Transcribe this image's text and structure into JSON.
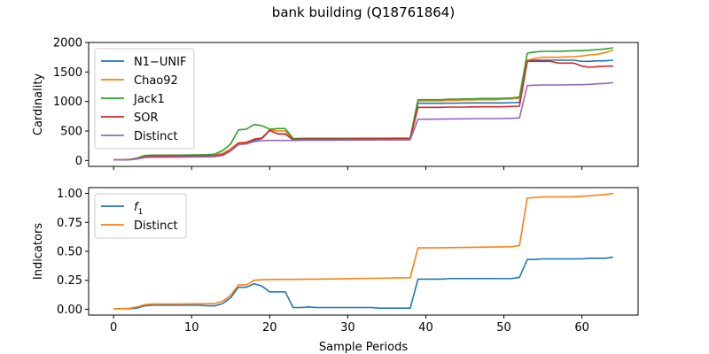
{
  "figure": {
    "title": "bank building (Q18761864)"
  },
  "chart_data": [
    {
      "type": "line",
      "ylabel": "Cardinality",
      "xlabel": "",
      "xlim": [
        -3.2,
        67.2
      ],
      "ylim": [
        -100,
        2000
      ],
      "xticks": [
        0,
        10,
        20,
        30,
        40,
        50,
        60
      ],
      "yticks": [
        0,
        500,
        1000,
        1500,
        2000
      ],
      "show_xtick_labels": false,
      "grid": false,
      "legend": "upper-left",
      "x": [
        0,
        1,
        2,
        3,
        4,
        5,
        6,
        7,
        8,
        9,
        10,
        11,
        12,
        13,
        14,
        15,
        16,
        17,
        18,
        19,
        20,
        21,
        22,
        23,
        24,
        25,
        26,
        27,
        28,
        29,
        30,
        31,
        32,
        33,
        34,
        35,
        36,
        37,
        38,
        39,
        40,
        41,
        42,
        43,
        44,
        45,
        46,
        47,
        48,
        49,
        50,
        51,
        52,
        53,
        54,
        55,
        56,
        57,
        58,
        59,
        60,
        61,
        62,
        63,
        64
      ],
      "series": [
        {
          "name": "N1−UNIF",
          "color": "#1f77b4",
          "values": [
            10,
            10,
            15,
            30,
            60,
            75,
            75,
            75,
            77,
            78,
            80,
            80,
            82,
            85,
            105,
            180,
            290,
            300,
            340,
            370,
            510,
            450,
            445,
            355,
            360,
            365,
            365,
            365,
            365,
            366,
            367,
            368,
            368,
            368,
            369,
            369,
            370,
            370,
            370,
            970,
            970,
            970,
            970,
            972,
            972,
            975,
            975,
            975,
            975,
            975,
            975,
            980,
            985,
            1700,
            1700,
            1700,
            1700,
            1700,
            1700,
            1700,
            1680,
            1680,
            1690,
            1690,
            1700
          ]
        },
        {
          "name": "Chao92",
          "color": "#ff7f0e",
          "values": [
            10,
            10,
            15,
            35,
            75,
            85,
            85,
            85,
            87,
            88,
            90,
            90,
            92,
            95,
            120,
            200,
            300,
            310,
            360,
            380,
            520,
            500,
            500,
            360,
            365,
            370,
            370,
            370,
            370,
            370,
            372,
            372,
            372,
            372,
            373,
            373,
            374,
            374,
            374,
            1010,
            1010,
            1010,
            1010,
            1020,
            1020,
            1025,
            1025,
            1030,
            1030,
            1030,
            1040,
            1045,
            1055,
            1700,
            1730,
            1750,
            1750,
            1750,
            1755,
            1760,
            1770,
            1790,
            1800,
            1830,
            1870
          ]
        },
        {
          "name": "Jack1",
          "color": "#2ca02c",
          "values": [
            10,
            10,
            15,
            40,
            85,
            90,
            90,
            90,
            90,
            92,
            95,
            95,
            98,
            110,
            170,
            280,
            520,
            530,
            610,
            590,
            530,
            540,
            540,
            370,
            375,
            375,
            375,
            375,
            375,
            376,
            376,
            377,
            377,
            378,
            378,
            378,
            379,
            379,
            380,
            1030,
            1030,
            1030,
            1030,
            1040,
            1040,
            1045,
            1045,
            1050,
            1050,
            1050,
            1055,
            1060,
            1075,
            1820,
            1840,
            1850,
            1850,
            1850,
            1855,
            1860,
            1860,
            1870,
            1880,
            1890,
            1910
          ]
        },
        {
          "name": "SOR",
          "color": "#d62728",
          "values": [
            10,
            10,
            15,
            30,
            60,
            70,
            70,
            70,
            72,
            73,
            75,
            75,
            77,
            80,
            100,
            175,
            290,
            300,
            360,
            380,
            510,
            450,
            450,
            355,
            360,
            362,
            362,
            362,
            362,
            363,
            363,
            364,
            364,
            365,
            365,
            365,
            366,
            366,
            366,
            900,
            900,
            900,
            900,
            905,
            905,
            905,
            908,
            910,
            910,
            910,
            912,
            915,
            920,
            1680,
            1680,
            1680,
            1680,
            1650,
            1650,
            1650,
            1600,
            1580,
            1590,
            1600,
            1600
          ]
        },
        {
          "name": "Distinct",
          "color": "#9467bd",
          "values": [
            10,
            10,
            12,
            25,
            50,
            55,
            55,
            55,
            57,
            58,
            60,
            60,
            62,
            65,
            85,
            160,
            270,
            280,
            320,
            335,
            340,
            340,
            340,
            340,
            342,
            343,
            343,
            344,
            344,
            345,
            346,
            346,
            347,
            347,
            348,
            348,
            349,
            349,
            350,
            700,
            700,
            700,
            702,
            703,
            705,
            706,
            708,
            710,
            710,
            710,
            712,
            715,
            720,
            1270,
            1275,
            1280,
            1280,
            1280,
            1282,
            1284,
            1285,
            1290,
            1300,
            1305,
            1320
          ]
        }
      ]
    },
    {
      "type": "line",
      "ylabel": "Indicators",
      "xlabel": "Sample Periods",
      "xlim": [
        -3.2,
        67.2
      ],
      "ylim": [
        -0.05,
        1.05
      ],
      "xticks": [
        0,
        10,
        20,
        30,
        40,
        50,
        60
      ],
      "yticks": [
        0.0,
        0.25,
        0.5,
        0.75,
        1.0
      ],
      "ytick_labels": [
        "0.00",
        "0.25",
        "0.50",
        "0.75",
        "1.00"
      ],
      "show_xtick_labels": true,
      "grid": false,
      "legend": "upper-left",
      "x": [
        0,
        1,
        2,
        3,
        4,
        5,
        6,
        7,
        8,
        9,
        10,
        11,
        12,
        13,
        14,
        15,
        16,
        17,
        18,
        19,
        20,
        21,
        22,
        23,
        24,
        25,
        26,
        27,
        28,
        29,
        30,
        31,
        32,
        33,
        34,
        35,
        36,
        37,
        38,
        39,
        40,
        41,
        42,
        43,
        44,
        45,
        46,
        47,
        48,
        49,
        50,
        51,
        52,
        53,
        54,
        55,
        56,
        57,
        58,
        59,
        60,
        61,
        62,
        63,
        64
      ],
      "series": [
        {
          "name": "f1",
          "color": "#1f77b4",
          "values": [
            0.005,
            0.005,
            0.005,
            0.01,
            0.03,
            0.035,
            0.035,
            0.035,
            0.035,
            0.035,
            0.035,
            0.035,
            0.03,
            0.03,
            0.05,
            0.1,
            0.19,
            0.19,
            0.22,
            0.2,
            0.15,
            0.15,
            0.15,
            0.015,
            0.015,
            0.02,
            0.015,
            0.015,
            0.015,
            0.015,
            0.015,
            0.015,
            0.015,
            0.015,
            0.01,
            0.01,
            0.01,
            0.01,
            0.01,
            0.26,
            0.26,
            0.26,
            0.26,
            0.265,
            0.265,
            0.265,
            0.265,
            0.265,
            0.265,
            0.265,
            0.265,
            0.265,
            0.275,
            0.43,
            0.43,
            0.435,
            0.435,
            0.435,
            0.435,
            0.435,
            0.435,
            0.44,
            0.44,
            0.44,
            0.45
          ]
        },
        {
          "name": "Distinct",
          "color": "#ff7f0e",
          "values": [
            0.005,
            0.005,
            0.008,
            0.02,
            0.04,
            0.045,
            0.045,
            0.045,
            0.045,
            0.046,
            0.047,
            0.047,
            0.048,
            0.05,
            0.07,
            0.12,
            0.21,
            0.21,
            0.25,
            0.255,
            0.257,
            0.258,
            0.258,
            0.258,
            0.259,
            0.26,
            0.26,
            0.261,
            0.262,
            0.263,
            0.264,
            0.265,
            0.266,
            0.267,
            0.268,
            0.269,
            0.27,
            0.271,
            0.272,
            0.53,
            0.53,
            0.53,
            0.531,
            0.532,
            0.533,
            0.534,
            0.535,
            0.536,
            0.537,
            0.538,
            0.539,
            0.54,
            0.55,
            0.96,
            0.965,
            0.97,
            0.97,
            0.97,
            0.97,
            0.972,
            0.975,
            0.98,
            0.985,
            0.99,
            1.0
          ]
        }
      ]
    }
  ]
}
